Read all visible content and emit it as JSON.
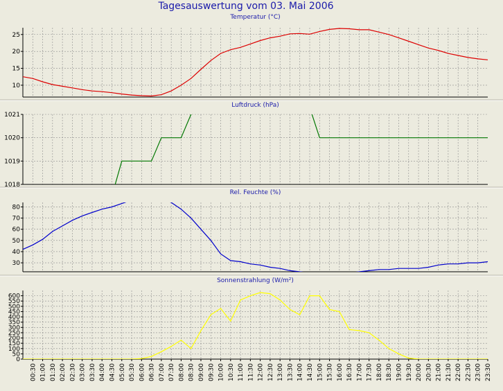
{
  "title": "Tagesauswertung vom 03. Mai 2006",
  "chart_data": [
    {
      "type": "line",
      "title": "Temperatur (°C)",
      "color": "#dd0000",
      "ylim": [
        6.5,
        27
      ],
      "yticks": [
        10,
        15,
        20,
        25
      ],
      "x": [
        0,
        0.5,
        1,
        1.5,
        2,
        2.5,
        3,
        3.5,
        4,
        4.5,
        5,
        5.5,
        6,
        6.5,
        7,
        7.5,
        8,
        8.5,
        9,
        9.5,
        10,
        10.5,
        11,
        11.5,
        12,
        12.5,
        13,
        13.5,
        14,
        14.5,
        15,
        15.5,
        16,
        16.5,
        17,
        17.5,
        18,
        18.5,
        19,
        19.5,
        20,
        20.5,
        21,
        21.5,
        22,
        22.5,
        23,
        23.5
      ],
      "values": [
        12.5,
        12.0,
        11.0,
        10.2,
        9.7,
        9.2,
        8.7,
        8.3,
        8.1,
        7.8,
        7.4,
        7.1,
        6.9,
        6.8,
        7.2,
        8.3,
        10.0,
        12.0,
        14.7,
        17.3,
        19.4,
        20.5,
        21.2,
        22.2,
        23.2,
        24.0,
        24.5,
        25.2,
        25.3,
        25.1,
        25.9,
        26.5,
        26.8,
        26.7,
        26.4,
        26.4,
        25.7,
        25.0,
        24.0,
        23.0,
        22.0,
        21.0,
        20.3,
        19.4,
        18.8,
        18.2,
        17.8,
        17.5
      ]
    },
    {
      "type": "line",
      "title": "Luftdruck (hPa)",
      "color": "#007700",
      "ylim": [
        1018,
        1021
      ],
      "yticks": [
        1018,
        1019,
        1020,
        1021
      ],
      "x": [
        0,
        4.5,
        5.0,
        6.5,
        7.0,
        8.0,
        8.5,
        9.0,
        14.5,
        15.0,
        23.5
      ],
      "values": [
        1017.5,
        1017.5,
        1019,
        1019,
        1020,
        1020,
        1021,
        1021.3,
        1021.3,
        1020,
        1020
      ]
    },
    {
      "type": "line",
      "title": "Rel. Feuchte (%)",
      "color": "#0000cc",
      "ylim": [
        22,
        84
      ],
      "yticks": [
        30,
        40,
        50,
        60,
        70,
        80
      ],
      "x": [
        0,
        0.5,
        1,
        1.5,
        2,
        2.5,
        3,
        3.5,
        4,
        4.5,
        5,
        5.5,
        6,
        6.5,
        7,
        7.5,
        8,
        8.5,
        9,
        9.5,
        10,
        10.5,
        11,
        11.5,
        12,
        12.5,
        13,
        13.5,
        14,
        14.5,
        15,
        15.5,
        16,
        16.5,
        17,
        17.5,
        18,
        18.5,
        19,
        19.5,
        20,
        20.5,
        21,
        21.5,
        22,
        22.5,
        23,
        23.5
      ],
      "values": [
        42,
        46,
        51,
        58,
        63,
        68,
        72,
        75,
        78,
        80,
        83,
        86,
        88,
        89,
        87,
        84,
        78,
        70,
        60,
        50,
        38,
        32,
        31,
        29,
        28,
        26,
        25,
        23,
        22,
        21,
        21,
        21,
        21,
        21,
        22,
        23,
        24,
        24,
        25,
        25,
        25,
        26,
        28,
        29,
        29,
        30,
        30,
        31
      ]
    },
    {
      "type": "line",
      "title": "Sonnenstrahlung (W/m²)",
      "color": "#ffff00",
      "ylim": [
        0,
        650
      ],
      "yticks": [
        0,
        50,
        100,
        150,
        200,
        250,
        300,
        350,
        400,
        450,
        500,
        550,
        600
      ],
      "x": [
        0,
        0.5,
        1,
        1.5,
        2,
        2.5,
        3,
        3.5,
        4,
        4.5,
        5,
        5.5,
        6,
        6.5,
        7,
        7.5,
        8,
        8.5,
        9,
        9.5,
        10,
        10.5,
        11,
        11.5,
        12,
        12.5,
        13,
        13.5,
        14,
        14.5,
        15,
        15.5,
        16,
        16.5,
        17,
        17.5,
        18,
        18.5,
        19,
        19.5,
        20,
        20.5,
        21,
        21.5,
        22,
        22.5,
        23,
        23.5
      ],
      "values": [
        0,
        0,
        0,
        0,
        0,
        0,
        0,
        0,
        0,
        0,
        0,
        0,
        5,
        25,
        70,
        120,
        180,
        100,
        270,
        420,
        480,
        360,
        560,
        600,
        630,
        620,
        560,
        470,
        420,
        600,
        600,
        470,
        450,
        280,
        270,
        250,
        180,
        100,
        50,
        10,
        0,
        0,
        0,
        0,
        0,
        0,
        0,
        0
      ],
      "xticks": [
        "00:30",
        "01:00",
        "01:30",
        "02:00",
        "02:30",
        "03:00",
        "03:30",
        "04:00",
        "04:30",
        "05:00",
        "05:30",
        "06:00",
        "06:30",
        "07:00",
        "07:30",
        "08:00",
        "08:30",
        "09:00",
        "09:30",
        "10:00",
        "10:30",
        "11:00",
        "11:30",
        "12:00",
        "12:30",
        "13:00",
        "13:30",
        "14:00",
        "14:30",
        "15:00",
        "15:30",
        "16:00",
        "16:30",
        "17:00",
        "17:30",
        "18:00",
        "18:30",
        "19:00",
        "19:30",
        "20:00",
        "20:30",
        "21:00",
        "21:30",
        "22:00",
        "22:30",
        "23:00",
        "23:30"
      ]
    }
  ]
}
